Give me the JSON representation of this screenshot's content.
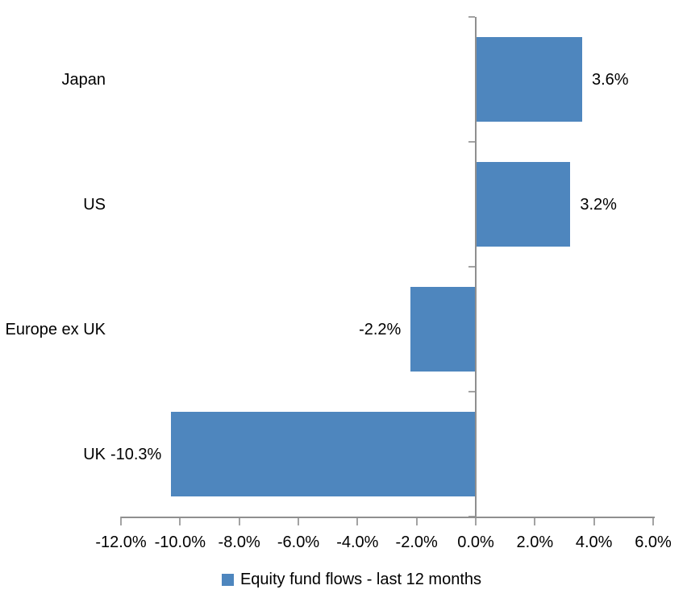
{
  "chart_data": {
    "type": "bar",
    "orientation": "horizontal",
    "title": "",
    "xlabel": "",
    "ylabel": "",
    "categories": [
      "Japan",
      "US",
      "Europe ex UK",
      "UK"
    ],
    "series": [
      {
        "name": "Equity fund flows - last 12 months",
        "values": [
          3.6,
          3.2,
          -2.2,
          -10.3
        ],
        "data_labels": [
          "3.6%",
          "3.2%",
          "-2.2%",
          "-10.3%"
        ]
      }
    ],
    "xlim": [
      -12,
      6
    ],
    "x_ticks": [
      {
        "value": -12,
        "label": "-12.0%"
      },
      {
        "value": -10,
        "label": "-10.0%"
      },
      {
        "value": -8,
        "label": "-8.0%"
      },
      {
        "value": -6,
        "label": "-6.0%"
      },
      {
        "value": -4,
        "label": "-4.0%"
      },
      {
        "value": -2,
        "label": "-2.0%"
      },
      {
        "value": 0,
        "label": "0.0%"
      },
      {
        "value": 2,
        "label": "2.0%"
      },
      {
        "value": 4,
        "label": "4.0%"
      },
      {
        "value": 6,
        "label": "6.0%"
      }
    ],
    "grid": false,
    "legend_position": "bottom",
    "colors": {
      "bar": "#4e86be",
      "axis_line": "#8f8f8f",
      "tick_mark": "#a3a3a3",
      "text": "#000000",
      "background": "#ffffff"
    }
  },
  "legend": {
    "label": "Equity fund flows - last 12 months"
  }
}
